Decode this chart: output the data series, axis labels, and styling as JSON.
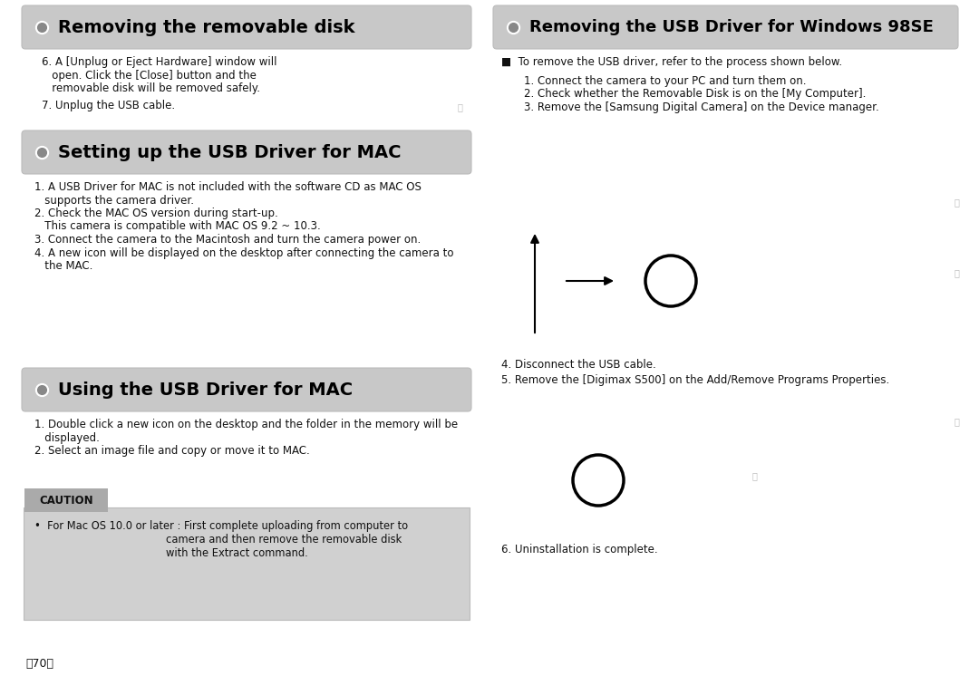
{
  "bg_color": "#ffffff",
  "header1_text": "Removing the removable disk",
  "header2_text": "Removing the USB Driver for Windows 98SE",
  "header3_text": "Setting up the USB Driver for MAC",
  "header4_text": "Using the USB Driver for MAC",
  "header_bg": "#c8c8c8",
  "s1_lines": [
    "6. A [Unplug or Eject Hardware] window will",
    "   open. Click the [Close] button and the",
    "   removable disk will be removed safely."
  ],
  "s1_line2": "7. Unplug the USB cable.",
  "s2_bullet": "■  To remove the USB driver, refer to the process shown below.",
  "s2_lines": [
    "1. Connect the camera to your PC and turn them on.",
    "2. Check whether the Removable Disk is on the [My Computer].",
    "3. Remove the [Samsung Digital Camera] on the Device manager."
  ],
  "s2_bottom": [
    "4. Disconnect the USB cable.",
    "5. Remove the [Digimax S500] on the Add/Remove Programs Properties."
  ],
  "s3_lines": [
    "1. A USB Driver for MAC is not included with the software CD as MAC OS",
    "   supports the camera driver.",
    "2. Check the MAC OS version during start-up.",
    "   This camera is compatible with MAC OS 9.2 ~ 10.3.",
    "3. Connect the camera to the Macintosh and turn the camera power on.",
    "4. A new icon will be displayed on the desktop after connecting the camera to",
    "   the MAC."
  ],
  "s4_lines": [
    "1. Double click a new icon on the desktop and the folder in the memory will be",
    "   displayed.",
    "2. Select an image file and copy or move it to MAC."
  ],
  "caution_title": "CAUTION",
  "caution_line1": "•  For Mac OS 10.0 or later : First complete uploading from computer to",
  "caution_line2": "                                        camera and then remove the removable disk",
  "caution_line3": "                                        with the Extract command.",
  "page_number": "〈70〉",
  "text6": "6. Uninstallation is complete."
}
